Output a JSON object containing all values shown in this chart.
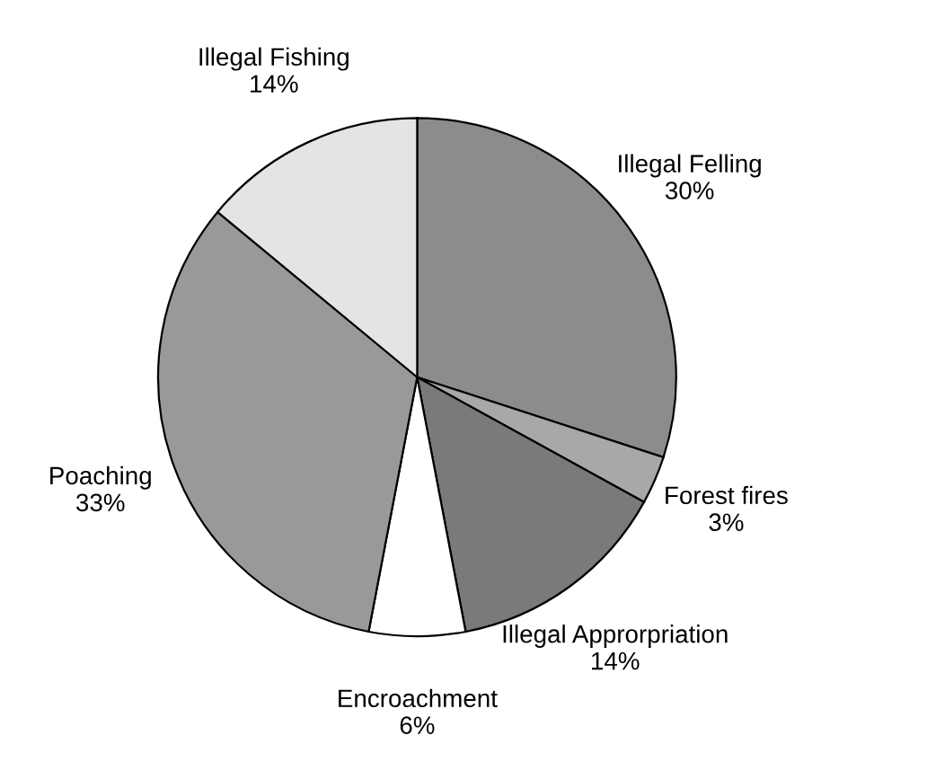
{
  "chart_data": {
    "type": "pie",
    "categories": [
      "Illegal Felling",
      "Forest fires",
      "Illegal Approrpriation",
      "Encroachment",
      "Poaching",
      "Illegal Fishing"
    ],
    "values": [
      30,
      3,
      14,
      6,
      33,
      14
    ],
    "value_labels": [
      "30%",
      "3%",
      "14%",
      "6%",
      "33%",
      "14%"
    ],
    "colors": [
      "#8c8c8c",
      "#a8a8a8",
      "#7a7a7a",
      "#ffffff",
      "#999999",
      "#e4e4e4"
    ],
    "legend": false
  }
}
